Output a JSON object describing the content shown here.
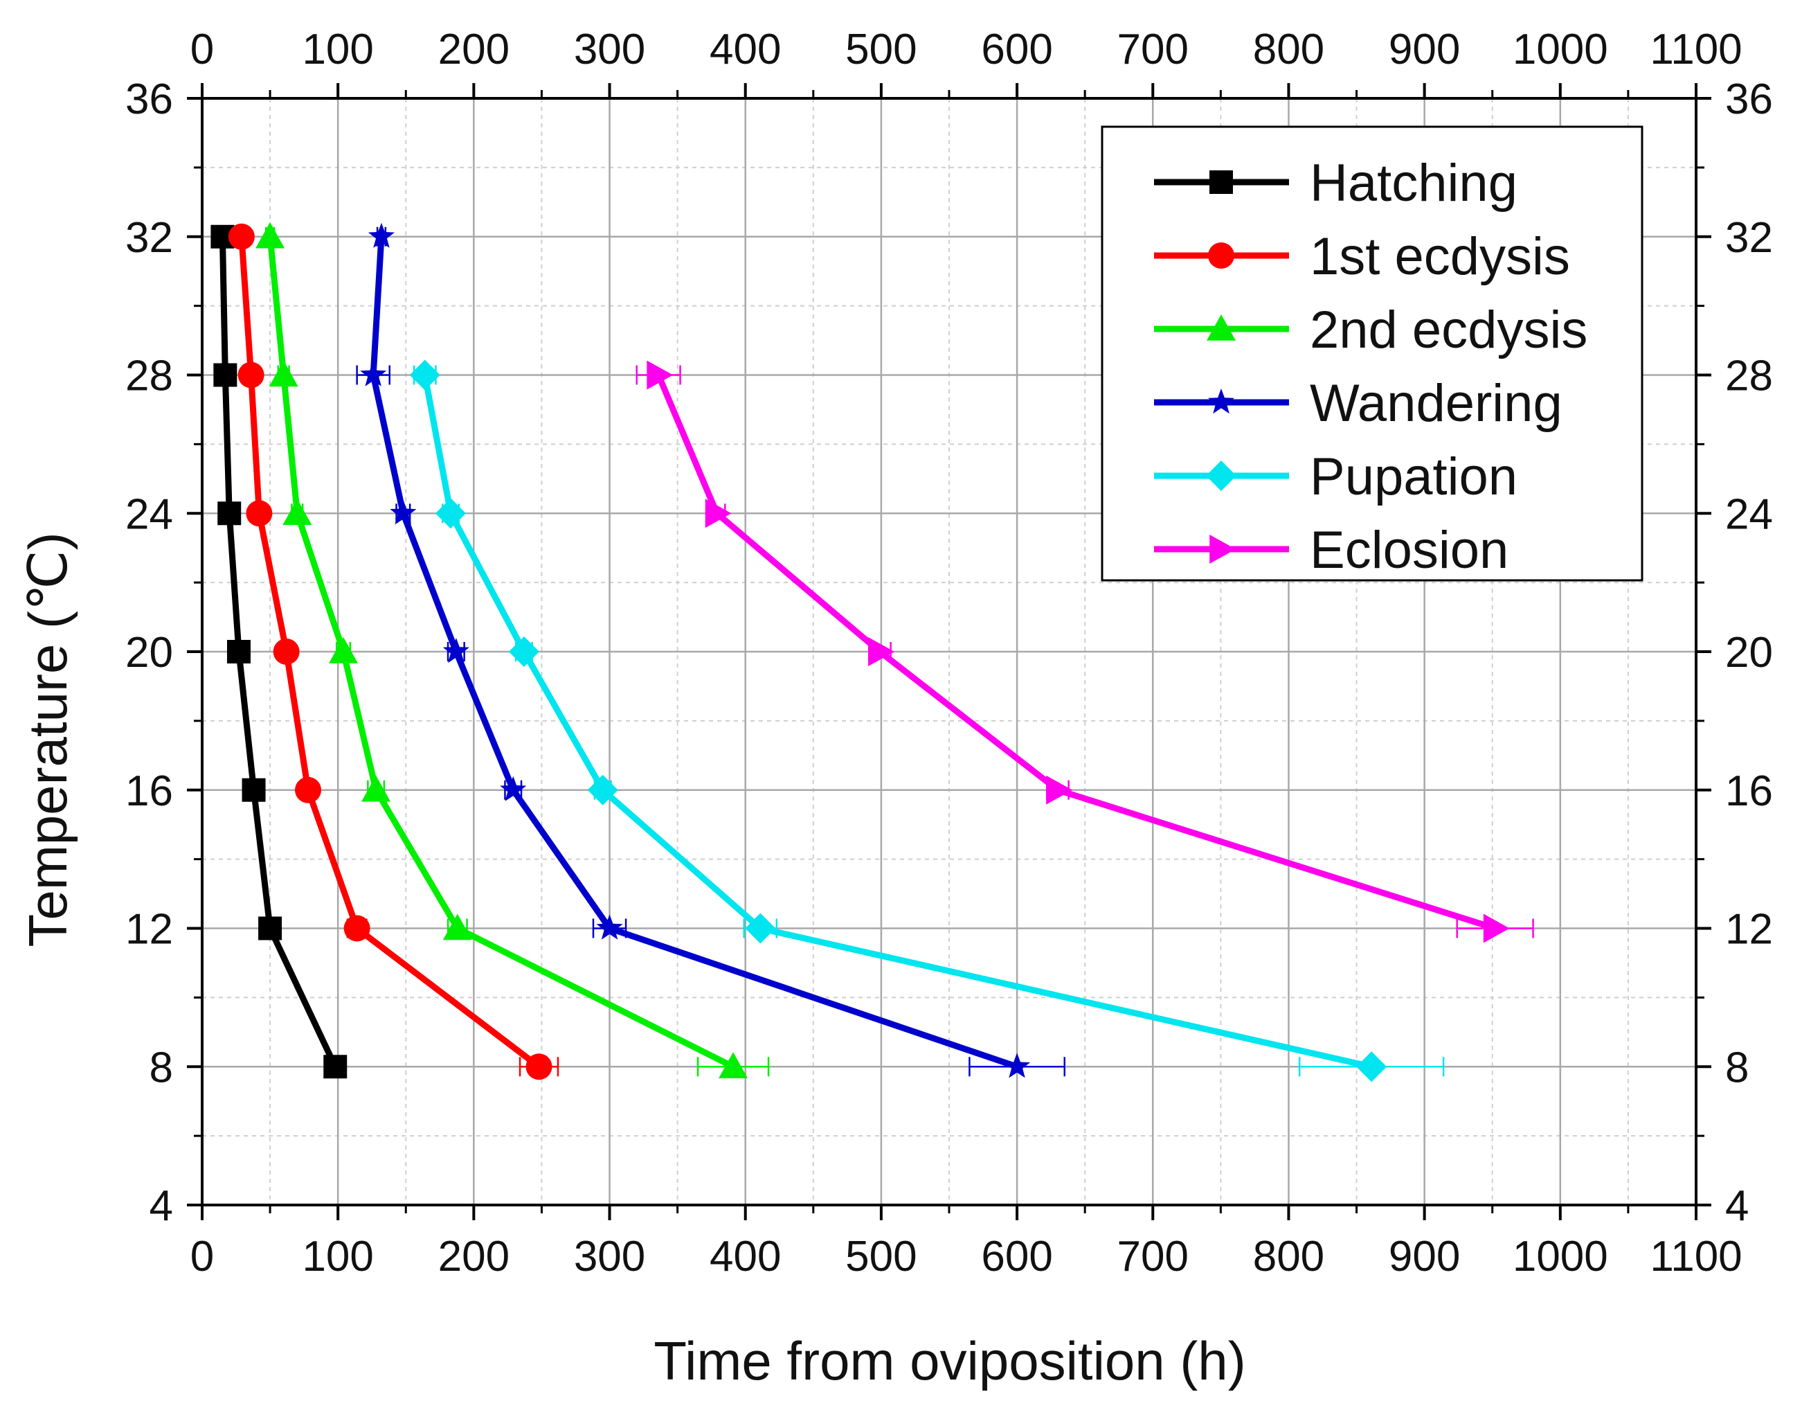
{
  "chart_data": {
    "type": "line",
    "title": "",
    "xlabel": "Time from oviposition (h)",
    "ylabel": "Temperature (℃)",
    "xlim": [
      0,
      1100
    ],
    "ylim": [
      4,
      36
    ],
    "x_ticks": [
      0,
      100,
      200,
      300,
      400,
      500,
      600,
      700,
      800,
      900,
      1000,
      1100
    ],
    "x_tick_labels": [
      "0",
      "100",
      "200",
      "300",
      "400",
      "500",
      "600",
      "700",
      "800",
      "900",
      "1000",
      "1100"
    ],
    "y_ticks": [
      4,
      8,
      12,
      16,
      20,
      24,
      28,
      32,
      36
    ],
    "y_tick_labels": [
      "4",
      "8",
      "12",
      "16",
      "20",
      "24",
      "28",
      "32",
      "36"
    ],
    "grid": true,
    "legend_position": "top-right",
    "series": [
      {
        "name": "Hatching",
        "color": "#000000",
        "marker": "square",
        "points": [
          {
            "temp": 32,
            "time": 15,
            "err": 2
          },
          {
            "temp": 28,
            "time": 17,
            "err": 2
          },
          {
            "temp": 24,
            "time": 20,
            "err": 2
          },
          {
            "temp": 20,
            "time": 27,
            "err": 2
          },
          {
            "temp": 16,
            "time": 38,
            "err": 3
          },
          {
            "temp": 12,
            "time": 50,
            "err": 4
          },
          {
            "temp": 8,
            "time": 98,
            "err": 4
          }
        ]
      },
      {
        "name": "1st ecdysis",
        "color": "#ff0000",
        "marker": "circle",
        "points": [
          {
            "temp": 32,
            "time": 29,
            "err": 3
          },
          {
            "temp": 28,
            "time": 36,
            "err": 3
          },
          {
            "temp": 24,
            "time": 42,
            "err": 3
          },
          {
            "temp": 20,
            "time": 62,
            "err": 3
          },
          {
            "temp": 16,
            "time": 78,
            "err": 4
          },
          {
            "temp": 12,
            "time": 114,
            "err": 7
          },
          {
            "temp": 8,
            "time": 248,
            "err": 14
          }
        ]
      },
      {
        "name": "2nd ecdysis",
        "color": "#00ee00",
        "marker": "triangle",
        "points": [
          {
            "temp": 32,
            "time": 50,
            "err": 3
          },
          {
            "temp": 28,
            "time": 60,
            "err": 4
          },
          {
            "temp": 24,
            "time": 70,
            "err": 4
          },
          {
            "temp": 20,
            "time": 104,
            "err": 5
          },
          {
            "temp": 16,
            "time": 128,
            "err": 6
          },
          {
            "temp": 12,
            "time": 188,
            "err": 7
          },
          {
            "temp": 8,
            "time": 391,
            "err": 26
          }
        ]
      },
      {
        "name": "Wandering",
        "color": "#0000cc",
        "marker": "star",
        "points": [
          {
            "temp": 32,
            "time": 132,
            "err": 3
          },
          {
            "temp": 28,
            "time": 126,
            "err": 12
          },
          {
            "temp": 24,
            "time": 148,
            "err": 5
          },
          {
            "temp": 20,
            "time": 187,
            "err": 6
          },
          {
            "temp": 16,
            "time": 229,
            "err": 6
          },
          {
            "temp": 12,
            "time": 300,
            "err": 12
          },
          {
            "temp": 8,
            "time": 600,
            "err": 35
          }
        ]
      },
      {
        "name": "Pupation",
        "color": "#00e5ee",
        "marker": "diamond",
        "points": [
          {
            "temp": 28,
            "time": 164,
            "err": 8
          },
          {
            "temp": 24,
            "time": 183,
            "err": 6
          },
          {
            "temp": 20,
            "time": 237,
            "err": 6
          },
          {
            "temp": 16,
            "time": 295,
            "err": 6
          },
          {
            "temp": 12,
            "time": 411,
            "err": 12
          },
          {
            "temp": 8,
            "time": 861,
            "err": 53
          }
        ]
      },
      {
        "name": "Eclosion",
        "color": "#ff00ee",
        "marker": "triangle-right",
        "points": [
          {
            "temp": 28,
            "time": 336,
            "err": 16
          },
          {
            "temp": 24,
            "time": 379,
            "err": 6
          },
          {
            "temp": 20,
            "time": 499,
            "err": 8
          },
          {
            "temp": 16,
            "time": 630,
            "err": 8
          },
          {
            "temp": 12,
            "time": 952,
            "err": 28
          }
        ]
      }
    ]
  }
}
